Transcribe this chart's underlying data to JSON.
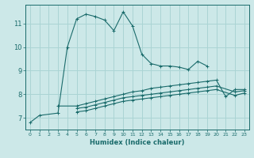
{
  "xlabel": "Humidex (Indice chaleur)",
  "ylabel": "",
  "bg_color": "#cce8e8",
  "grid_color": "#aad4d4",
  "line_color": "#1a6b6b",
  "xlim": [
    -0.5,
    23.5
  ],
  "ylim": [
    6.5,
    11.8
  ],
  "xticks": [
    0,
    1,
    2,
    3,
    4,
    5,
    6,
    7,
    8,
    9,
    10,
    11,
    12,
    13,
    14,
    15,
    16,
    17,
    18,
    19,
    20,
    21,
    22,
    23
  ],
  "yticks": [
    7,
    8,
    9,
    10,
    11
  ],
  "lines": [
    {
      "x": [
        0,
        1,
        3,
        4,
        5,
        6,
        7,
        8,
        9,
        10,
        11,
        12,
        13,
        14,
        15,
        16,
        17,
        18,
        19
      ],
      "y": [
        6.8,
        7.1,
        7.2,
        10.0,
        11.2,
        11.4,
        11.3,
        11.15,
        10.7,
        11.5,
        10.9,
        9.7,
        9.3,
        9.2,
        9.2,
        9.15,
        9.05,
        9.4,
        9.2
      ],
      "style": "-",
      "marker": "+"
    },
    {
      "x": [
        3,
        5,
        6,
        7,
        8,
        9,
        10,
        11,
        12,
        13,
        14,
        15,
        16,
        17,
        18,
        19,
        20,
        21,
        22,
        23
      ],
      "y": [
        7.5,
        7.5,
        7.6,
        7.7,
        7.8,
        7.9,
        8.0,
        8.1,
        8.15,
        8.25,
        8.3,
        8.35,
        8.4,
        8.45,
        8.5,
        8.55,
        8.6,
        7.9,
        8.2,
        8.2
      ],
      "style": "-",
      "marker": "+"
    },
    {
      "x": [
        5,
        6,
        7,
        8,
        9,
        10,
        11,
        12,
        13,
        14,
        15,
        16,
        17,
        18,
        19,
        20,
        22,
        23
      ],
      "y": [
        7.4,
        7.45,
        7.55,
        7.65,
        7.75,
        7.85,
        7.9,
        7.95,
        8.0,
        8.05,
        8.1,
        8.15,
        8.2,
        8.25,
        8.3,
        8.35,
        8.1,
        8.15
      ],
      "style": "-",
      "marker": "+"
    },
    {
      "x": [
        5,
        6,
        7,
        8,
        9,
        10,
        11,
        12,
        13,
        14,
        15,
        16,
        17,
        18,
        19,
        20,
        22,
        23
      ],
      "y": [
        7.25,
        7.3,
        7.4,
        7.5,
        7.6,
        7.7,
        7.75,
        7.8,
        7.85,
        7.9,
        7.95,
        8.0,
        8.05,
        8.1,
        8.15,
        8.2,
        7.95,
        8.05
      ],
      "style": "-",
      "marker": "+"
    }
  ]
}
